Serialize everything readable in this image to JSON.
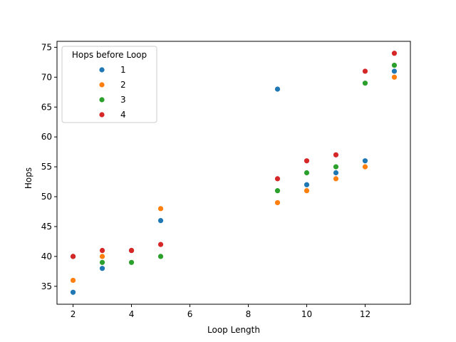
{
  "chart_data": {
    "type": "scatter",
    "title": "",
    "xlabel": "Loop Length",
    "ylabel": "Hops",
    "xlim": [
      1.45,
      13.55
    ],
    "ylim": [
      32,
      76
    ],
    "xticks": [
      2,
      4,
      6,
      8,
      10,
      12
    ],
    "yticks": [
      35,
      40,
      45,
      50,
      55,
      60,
      65,
      70,
      75
    ],
    "grid": false,
    "legend": {
      "title": "Hops before Loop",
      "placement": "top-left"
    },
    "series": [
      {
        "name": "1",
        "color": "#1f77b4",
        "points": [
          [
            2,
            34
          ],
          [
            3,
            38
          ],
          [
            4,
            41
          ],
          [
            5,
            46
          ],
          [
            9,
            68
          ],
          [
            10,
            52
          ],
          [
            11,
            54
          ],
          [
            12,
            56
          ],
          [
            13,
            71
          ]
        ]
      },
      {
        "name": "2",
        "color": "#ff7f0e",
        "points": [
          [
            2,
            36
          ],
          [
            3,
            40
          ],
          [
            4,
            41
          ],
          [
            5,
            48
          ],
          [
            9,
            49
          ],
          [
            10,
            51
          ],
          [
            11,
            53
          ],
          [
            12,
            55
          ],
          [
            13,
            70
          ]
        ]
      },
      {
        "name": "3",
        "color": "#2ca02c",
        "points": [
          [
            2,
            40
          ],
          [
            3,
            39
          ],
          [
            4,
            39
          ],
          [
            5,
            40
          ],
          [
            9,
            51
          ],
          [
            10,
            54
          ],
          [
            11,
            55
          ],
          [
            12,
            69
          ],
          [
            13,
            72
          ]
        ]
      },
      {
        "name": "4",
        "color": "#d62728",
        "points": [
          [
            2,
            40
          ],
          [
            3,
            41
          ],
          [
            4,
            41
          ],
          [
            5,
            42
          ],
          [
            9,
            53
          ],
          [
            10,
            56
          ],
          [
            11,
            57
          ],
          [
            12,
            71
          ],
          [
            13,
            74
          ]
        ]
      }
    ]
  }
}
